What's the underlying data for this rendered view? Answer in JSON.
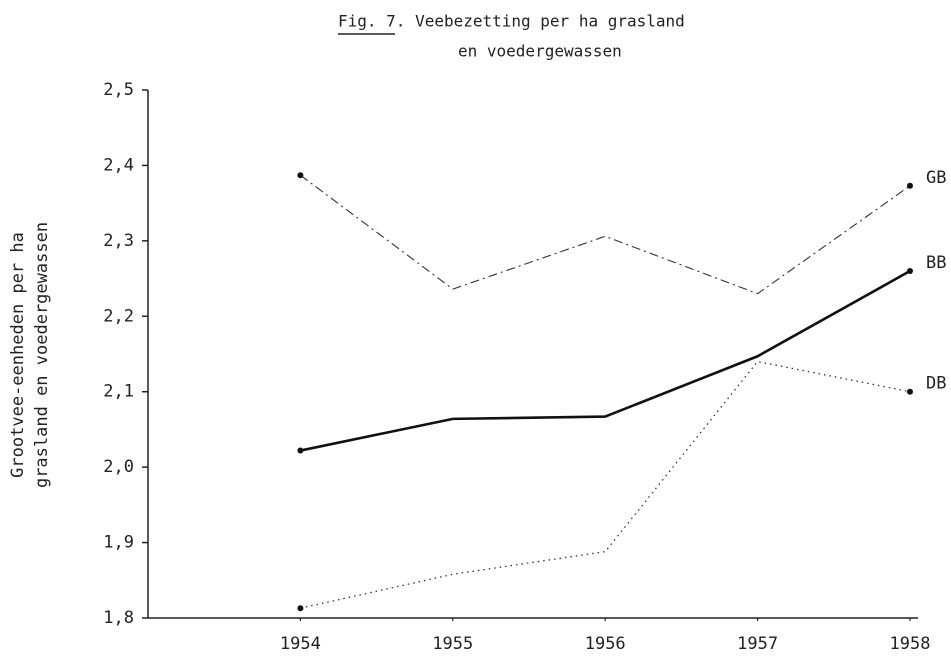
{
  "chart_data": {
    "type": "line",
    "title": [
      "Fig. 7. Veebezetting per ha grasland",
      "en voedergewassen"
    ],
    "y_label": [
      "Grootvee-eenheden per ha",
      "grasland en voedergewassen"
    ],
    "x": [
      1954,
      1955,
      1956,
      1957,
      1958
    ],
    "xlim": [
      1953,
      1958
    ],
    "xticks": [
      1954,
      1955,
      1956,
      1957,
      1958
    ],
    "ylim": [
      1.8,
      2.5
    ],
    "yticks": [
      {
        "value": 1.8,
        "label": "1,8"
      },
      {
        "value": 1.9,
        "label": "1,9"
      },
      {
        "value": 2.0,
        "label": "2,0"
      },
      {
        "value": 2.1,
        "label": "2,1"
      },
      {
        "value": 2.2,
        "label": "2,2"
      },
      {
        "value": 2.3,
        "label": "2,3"
      },
      {
        "value": 2.4,
        "label": "2,4"
      },
      {
        "value": 2.5,
        "label": "2,5"
      }
    ],
    "series": [
      {
        "name": "GB",
        "color": "#333333",
        "style": "dashdot",
        "values": [
          2.387,
          2.236,
          2.306,
          2.23,
          2.373
        ]
      },
      {
        "name": "BB",
        "color": "#111111",
        "style": "solid",
        "values": [
          2.022,
          2.064,
          2.067,
          2.147,
          2.26
        ]
      },
      {
        "name": "DB",
        "color": "#333333",
        "style": "dotted",
        "values": [
          1.813,
          1.858,
          1.888,
          2.14,
          2.1
        ]
      }
    ]
  }
}
